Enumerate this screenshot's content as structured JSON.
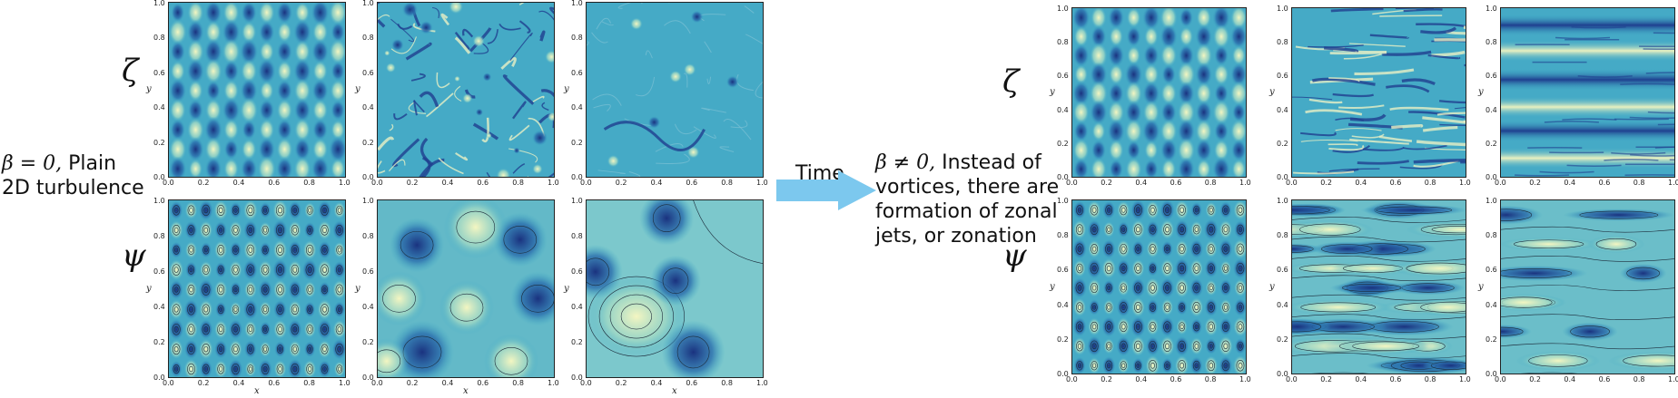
{
  "left_caption": {
    "math": "β = 0,",
    "text": "Plain 2D turbulence"
  },
  "right_caption": {
    "math": "β ≠ 0,",
    "text": "Instead of vortices, there are formation of zonal jets, or zonation"
  },
  "arrow_label": "Time",
  "row_labels": {
    "vorticity": "ζ",
    "streamfunction": "ψ"
  },
  "axis_labels": {
    "x": "x",
    "y": "y"
  },
  "ticks": [
    "0.0",
    "0.2",
    "0.4",
    "0.6",
    "0.8",
    "1.0"
  ],
  "colors": {
    "arrow": "#7cc8ee",
    "dark": "#1f3f8f",
    "mid": "#36a3c6",
    "light": "#f2f4c0"
  }
}
